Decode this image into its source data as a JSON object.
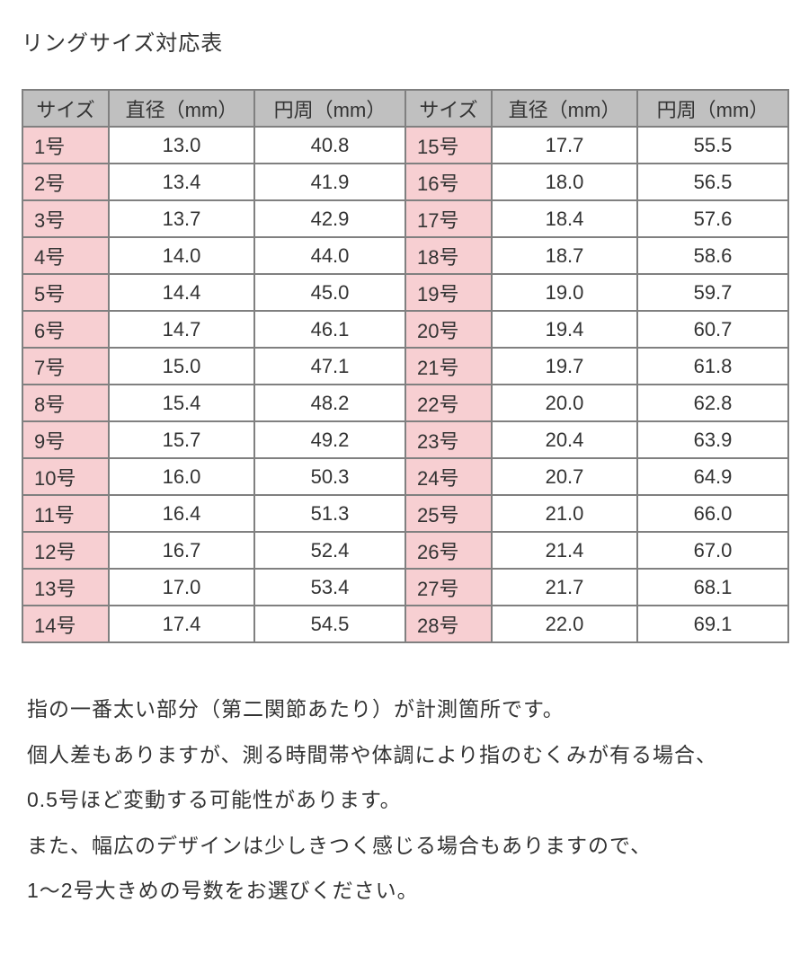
{
  "title": "リングサイズ対応表",
  "colors": {
    "header_bg": "#c0c0c0",
    "size_bg": "#f7cfd2",
    "border": "#808080",
    "text": "#333333",
    "page_bg": "#ffffff"
  },
  "table": {
    "headers": {
      "size": "サイズ",
      "diameter": "直径（mm）",
      "circumference": "円周（mm）"
    },
    "left_rows": [
      {
        "size": "1号",
        "dia": "13.0",
        "cir": "40.8"
      },
      {
        "size": "2号",
        "dia": "13.4",
        "cir": "41.9"
      },
      {
        "size": "3号",
        "dia": "13.7",
        "cir": "42.9"
      },
      {
        "size": "4号",
        "dia": "14.0",
        "cir": "44.0"
      },
      {
        "size": "5号",
        "dia": "14.4",
        "cir": "45.0"
      },
      {
        "size": "6号",
        "dia": "14.7",
        "cir": "46.1"
      },
      {
        "size": "7号",
        "dia": "15.0",
        "cir": "47.1"
      },
      {
        "size": "8号",
        "dia": "15.4",
        "cir": "48.2"
      },
      {
        "size": "9号",
        "dia": "15.7",
        "cir": "49.2"
      },
      {
        "size": "10号",
        "dia": "16.0",
        "cir": "50.3"
      },
      {
        "size": "11号",
        "dia": "16.4",
        "cir": "51.3"
      },
      {
        "size": "12号",
        "dia": "16.7",
        "cir": "52.4"
      },
      {
        "size": "13号",
        "dia": "17.0",
        "cir": "53.4"
      },
      {
        "size": "14号",
        "dia": "17.4",
        "cir": "54.5"
      }
    ],
    "right_rows": [
      {
        "size": "15号",
        "dia": "17.7",
        "cir": "55.5"
      },
      {
        "size": "16号",
        "dia": "18.0",
        "cir": "56.5"
      },
      {
        "size": "17号",
        "dia": "18.4",
        "cir": "57.6"
      },
      {
        "size": "18号",
        "dia": "18.7",
        "cir": "58.6"
      },
      {
        "size": "19号",
        "dia": "19.0",
        "cir": "59.7"
      },
      {
        "size": "20号",
        "dia": "19.4",
        "cir": "60.7"
      },
      {
        "size": "21号",
        "dia": "19.7",
        "cir": "61.8"
      },
      {
        "size": "22号",
        "dia": "20.0",
        "cir": "62.8"
      },
      {
        "size": "23号",
        "dia": "20.4",
        "cir": "63.9"
      },
      {
        "size": "24号",
        "dia": "20.7",
        "cir": "64.9"
      },
      {
        "size": "25号",
        "dia": "21.0",
        "cir": "66.0"
      },
      {
        "size": "26号",
        "dia": "21.4",
        "cir": "67.0"
      },
      {
        "size": "27号",
        "dia": "21.7",
        "cir": "68.1"
      },
      {
        "size": "28号",
        "dia": "22.0",
        "cir": "69.1"
      }
    ]
  },
  "notes": {
    "lines": [
      "指の一番太い部分（第二関節あたり）が計測箇所です。",
      "個人差もありますが、測る時間帯や体調により指のむくみが有る場合、",
      "0.5号ほど変動する可能性があります。",
      "また、幅広のデザインは少しきつく感じる場合もありますので、",
      "1～2号大きめの号数をお選びください。"
    ]
  }
}
